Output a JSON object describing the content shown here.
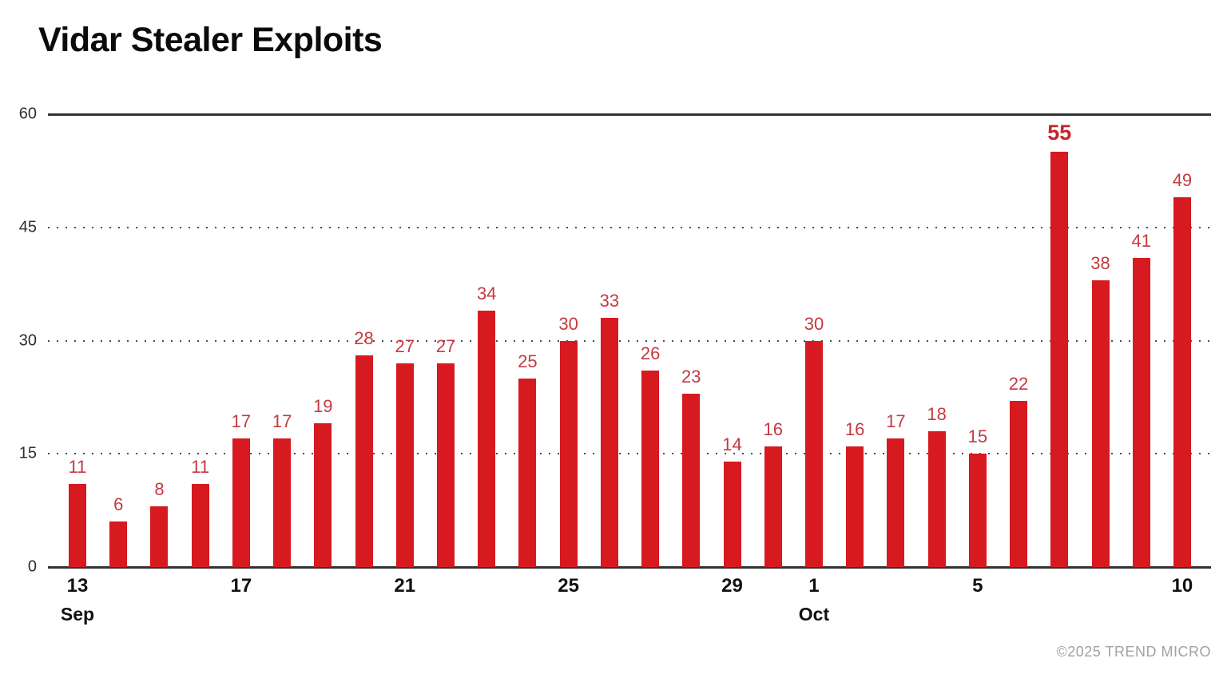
{
  "header": {
    "title": "Vidar Stealer Exploits"
  },
  "attribution": "©2025 TREND MICRO",
  "colors": {
    "bar": "#d71920",
    "value_label": "#c43a40",
    "max_value_label": "#c0282e",
    "axis_line": "#333333",
    "grid_dot": "#4d4d4d",
    "text": "#111111",
    "attribution": "#a2a2a2"
  },
  "chart_data": {
    "type": "bar",
    "title": "Vidar Stealer Exploits",
    "xlabel": "",
    "ylabel": "",
    "ylim": [
      0,
      60
    ],
    "grid": "dotted horizontal at 15/30/45, solid at 0 and 60",
    "legend": "none",
    "categories": [
      "Sep 13",
      "Sep 14",
      "Sep 15",
      "Sep 16",
      "Sep 17",
      "Sep 18",
      "Sep 19",
      "Sep 20",
      "Sep 21",
      "Sep 22",
      "Sep 23",
      "Sep 24",
      "Sep 25",
      "Sep 26",
      "Sep 27",
      "Sep 28",
      "Sep 29",
      "Sep 30",
      "Oct 1",
      "Oct 2",
      "Oct 3",
      "Oct 4",
      "Oct 5",
      "Oct 6",
      "Oct 7",
      "Oct 8",
      "Oct 9",
      "Oct 10"
    ],
    "values": [
      11,
      6,
      8,
      11,
      17,
      17,
      19,
      28,
      27,
      27,
      34,
      25,
      30,
      33,
      26,
      23,
      14,
      16,
      30,
      16,
      17,
      18,
      15,
      22,
      55,
      38,
      41,
      49
    ],
    "max_value": 55,
    "yticks": [
      {
        "value": 0,
        "label": "0",
        "style": "solid"
      },
      {
        "value": 15,
        "label": "15",
        "style": "dotted"
      },
      {
        "value": 30,
        "label": "30",
        "style": "dotted"
      },
      {
        "value": 45,
        "label": "45",
        "style": "dotted"
      },
      {
        "value": 60,
        "label": "60",
        "style": "solid"
      }
    ],
    "xticks": [
      {
        "index": 0,
        "label": "13",
        "month": "Sep"
      },
      {
        "index": 4,
        "label": "17"
      },
      {
        "index": 8,
        "label": "21"
      },
      {
        "index": 12,
        "label": "25"
      },
      {
        "index": 16,
        "label": "29"
      },
      {
        "index": 18,
        "label": "1",
        "month": "Oct"
      },
      {
        "index": 22,
        "label": "5"
      },
      {
        "index": 27,
        "label": "10"
      }
    ]
  }
}
